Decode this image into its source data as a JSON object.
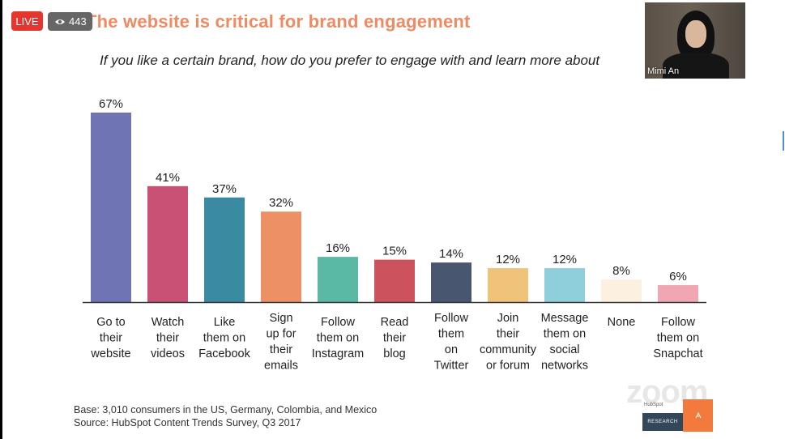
{
  "stream": {
    "live_label": "LIVE",
    "viewer_count": "443"
  },
  "slide": {
    "title": "The website is critical for brand engagement",
    "subtitle": "If you like a certain brand, how do you prefer to engage with and learn more about",
    "footnote_base": "Base: 3,010 consumers in the US, Germany, Colombia, and Mexico",
    "footnote_source": "Source: HubSpot Content Trends Survey, Q3 2017"
  },
  "participant": {
    "name": "Mimi An"
  },
  "watermark": {
    "zoom_label": "zoom",
    "hubspot_label": "HubSpot",
    "research_label": "RESEARCH"
  },
  "chart_data": {
    "type": "bar",
    "categories": [
      "Go to their website",
      "Watch their videos",
      "Like them on Facebook",
      "Sign up for their emails",
      "Follow them on Instagram",
      "Read their blog",
      "Follow them on Twitter",
      "Join their community or forum",
      "Message them on social networks",
      "None",
      "Follow them on Snapchat"
    ],
    "category_lines": [
      [
        "Go to",
        "their",
        "website"
      ],
      [
        "Watch",
        "their",
        "videos"
      ],
      [
        "Like",
        "them on",
        "Facebook"
      ],
      [
        "Sign",
        "up for",
        "their",
        "emails"
      ],
      [
        "Follow",
        "them on",
        "Instagram"
      ],
      [
        "Read",
        "their",
        "blog"
      ],
      [
        "Follow",
        "them",
        "on",
        "Twitter"
      ],
      [
        "Join",
        "their",
        "community",
        "or forum"
      ],
      [
        "Message",
        "them on",
        "social",
        "networks"
      ],
      [
        "None"
      ],
      [
        "Follow",
        "them on",
        "Snapchat"
      ]
    ],
    "values": [
      67,
      41,
      37,
      32,
      16,
      15,
      14,
      12,
      12,
      8,
      6
    ],
    "value_labels": [
      "67%",
      "41%",
      "37%",
      "32%",
      "16%",
      "15%",
      "14%",
      "12%",
      "12%",
      "8%",
      "6%"
    ],
    "colors": [
      "#6e74b4",
      "#c95175",
      "#3a8ba2",
      "#ee9066",
      "#5ab9a5",
      "#cc525e",
      "#48566f",
      "#efc47a",
      "#8fcfdc",
      "#fcf1e0",
      "#f1a7b3"
    ],
    "ylim": [
      0,
      67
    ],
    "unit": "%",
    "grid": false,
    "legend": "none"
  }
}
